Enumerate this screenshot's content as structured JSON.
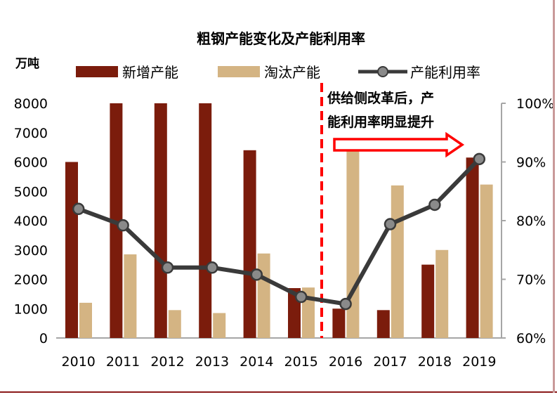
{
  "chart_data": {
    "type": "bar",
    "title": "粗钢产能变化及产能利用率",
    "ylabel": "万吨",
    "categories": [
      "2010",
      "2011",
      "2012",
      "2013",
      "2014",
      "2015",
      "2016",
      "2017",
      "2018",
      "2019"
    ],
    "series": [
      {
        "name": "新增产能",
        "kind": "bar",
        "axis": "left",
        "color": "#7b1c0c",
        "values": [
          6000,
          8000,
          8000,
          8000,
          6400,
          1700,
          1000,
          950,
          2500,
          6150
        ]
      },
      {
        "name": "淘汰产能",
        "kind": "bar",
        "axis": "left",
        "color": "#d4b483",
        "values": [
          1200,
          2850,
          950,
          850,
          2880,
          1720,
          6500,
          5200,
          3000,
          5230
        ]
      },
      {
        "name": "产能利用率",
        "kind": "line",
        "axis": "right",
        "color": "#3a3a3a",
        "values": [
          82,
          79.2,
          72,
          72,
          70.8,
          67,
          65.8,
          79.4,
          82.7,
          90.5
        ]
      }
    ],
    "ylim_left": [
      0,
      8000
    ],
    "yticks_left": [
      "0",
      "1000",
      "2000",
      "3000",
      "4000",
      "5000",
      "6000",
      "7000",
      "8000"
    ],
    "ylim_right": [
      60,
      100
    ],
    "yticks_right": [
      "60%",
      "70%",
      "80%",
      "90%",
      "100%"
    ],
    "legend": [
      "新增产能",
      "淘汰产能",
      "产能利用率"
    ],
    "legend_position": "top",
    "annotation": {
      "line1": "供给侧改革后，产",
      "line2": "能利用率明显提升",
      "marker_between": [
        "2015",
        "2016"
      ],
      "color": "#ff0000"
    }
  }
}
